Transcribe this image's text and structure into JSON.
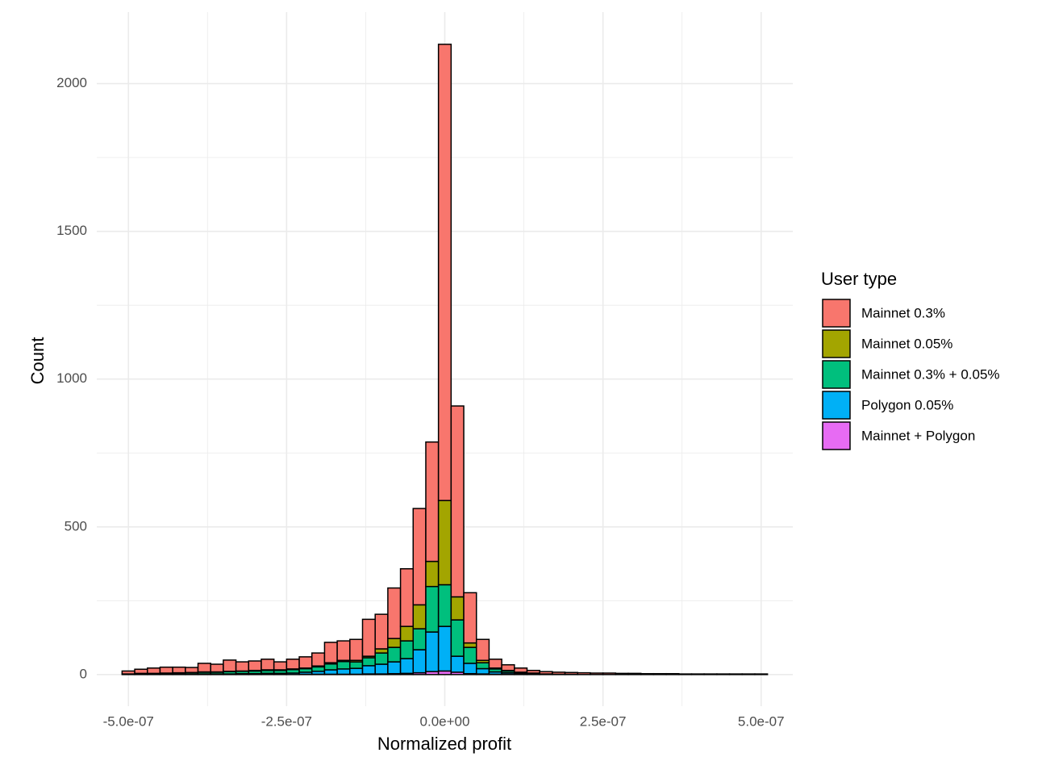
{
  "chart_data": {
    "type": "histogram",
    "x_label": "Normalized profit",
    "y_label": "Count",
    "legend_title": "User type",
    "legend_position": "right",
    "grid": true,
    "stacked": true,
    "bins": [
      -5.1e-07,
      -4.9e-07,
      -4.7e-07,
      -4.5e-07,
      -4.3e-07,
      -4.1e-07,
      -3.9e-07,
      -3.7e-07,
      -3.5e-07,
      -3.3e-07,
      -3.1e-07,
      -2.9e-07,
      -2.7e-07,
      -2.5e-07,
      -2.3e-07,
      -2.1e-07,
      -1.9e-07,
      -1.7e-07,
      -1.5e-07,
      -1.3e-07,
      -1.1e-07,
      -9e-08,
      -7e-08,
      -5e-08,
      -3e-08,
      -1e-08,
      1e-08,
      3e-08,
      5e-08,
      7e-08,
      9e-08,
      1.1e-07,
      1.3e-07,
      1.5e-07,
      1.7e-07,
      1.9e-07,
      2.1e-07,
      2.3e-07,
      2.5e-07,
      2.7e-07,
      2.9e-07,
      3.1e-07,
      3.3e-07,
      3.5e-07,
      3.7e-07,
      3.9e-07,
      4.1e-07,
      4.3e-07,
      4.5e-07,
      4.7e-07,
      4.9e-07,
      5.1e-07
    ],
    "series": [
      {
        "name": "Mainnet 0.3%",
        "color": "#F8766D",
        "values": [
          10,
          14,
          18,
          20,
          19,
          17,
          29,
          26,
          38,
          31,
          32,
          36,
          27,
          33,
          38,
          44,
          69,
          66,
          71,
          125,
          117,
          171,
          195,
          326,
          404,
          1544,
          646,
          170,
          71,
          30,
          19,
          14,
          9,
          8,
          7,
          6,
          6,
          5,
          5,
          4,
          4,
          3,
          3,
          3,
          2,
          2,
          2,
          2,
          2,
          2,
          2
        ]
      },
      {
        "name": "Mainnet 0.05%",
        "color": "#A3A500",
        "values": [
          0,
          0,
          0,
          0,
          1,
          1,
          1,
          1,
          1,
          1,
          2,
          2,
          2,
          2,
          2,
          3,
          4,
          4,
          5,
          5,
          14,
          30,
          49,
          81,
          85,
          285,
          78,
          15,
          8,
          3,
          2,
          1,
          1,
          0,
          0,
          0,
          0,
          0,
          0,
          0,
          0,
          0,
          0,
          0,
          0,
          0,
          0,
          0,
          0,
          0,
          0
        ]
      },
      {
        "name": "Mainnet 0.3% + 0.05%",
        "color": "#00BF7D",
        "values": [
          2,
          3,
          3,
          4,
          4,
          5,
          6,
          6,
          8,
          8,
          9,
          10,
          10,
          12,
          12,
          15,
          20,
          25,
          22,
          27,
          38,
          49,
          60,
          71,
          154,
          141,
          123,
          54,
          20,
          10,
          6,
          4,
          2,
          1,
          1,
          1,
          0,
          0,
          0,
          0,
          0,
          0,
          0,
          0,
          0,
          0,
          0,
          0,
          0,
          0,
          0
        ]
      },
      {
        "name": "Polygon 0.05%",
        "color": "#00B0F6",
        "values": [
          0,
          1,
          1,
          1,
          1,
          1,
          2,
          2,
          2,
          3,
          3,
          4,
          4,
          5,
          7,
          10,
          15,
          18,
          20,
          28,
          33,
          40,
          50,
          78,
          134,
          151,
          54,
          35,
          18,
          8,
          5,
          3,
          2,
          1,
          0,
          0,
          0,
          0,
          0,
          0,
          0,
          0,
          0,
          0,
          0,
          0,
          0,
          0,
          0,
          0,
          0
        ]
      },
      {
        "name": "Mainnet + Polygon",
        "color": "#E76BF3",
        "values": [
          0,
          0,
          0,
          0,
          0,
          0,
          0,
          0,
          0,
          0,
          0,
          0,
          0,
          0,
          1,
          1,
          1,
          1,
          1,
          2,
          2,
          3,
          4,
          6,
          10,
          12,
          8,
          3,
          2,
          1,
          1,
          0,
          0,
          0,
          0,
          0,
          0,
          0,
          0,
          0,
          0,
          0,
          0,
          0,
          0,
          0,
          0,
          0,
          0,
          0,
          0
        ]
      }
    ],
    "xlim": [
      -5.5e-07,
      5.5e-07
    ],
    "xticks": [
      {
        "value": -5e-07,
        "label": "-5.0e-07"
      },
      {
        "value": -2.5e-07,
        "label": "-2.5e-07"
      },
      {
        "value": 0,
        "label": "0.0e+00"
      },
      {
        "value": 2.5e-07,
        "label": "2.5e-07"
      },
      {
        "value": 5e-07,
        "label": "5.0e-07"
      }
    ],
    "ylim": [
      -107,
      2242
    ],
    "yticks": [
      0,
      500,
      1000,
      1500,
      2000
    ]
  }
}
